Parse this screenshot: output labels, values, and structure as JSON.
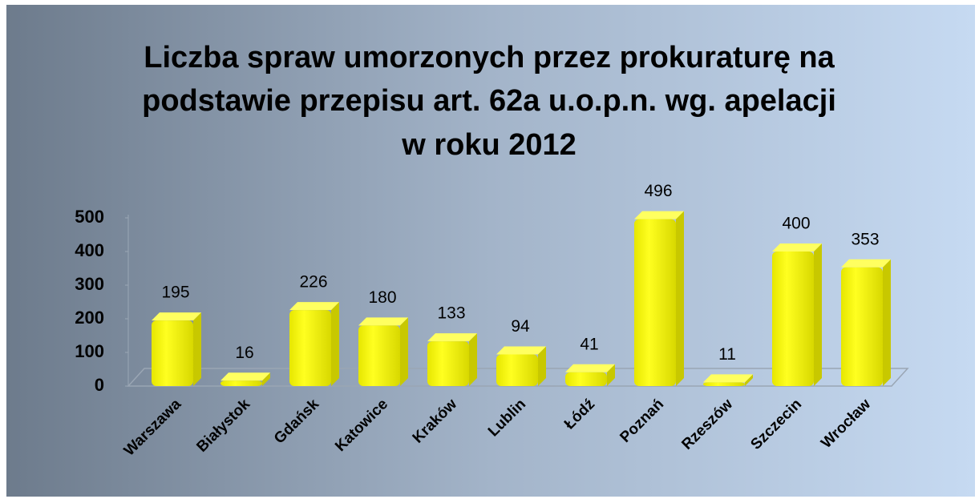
{
  "chart_data": {
    "type": "bar",
    "title": [
      "Liczba spraw umorzonych przez prokuraturę na",
      "podstawie przepisu art. 62a u.o.p.n. wg. apelacji",
      "w roku 2012"
    ],
    "categories": [
      "Warszawa",
      "Białystok",
      "Gdańsk",
      "Katowice",
      "Kraków",
      "Lublin",
      "Łódź",
      "Poznań",
      "Rzeszów",
      "Szczecin",
      "Wrocław"
    ],
    "values": [
      195,
      16,
      226,
      180,
      133,
      94,
      41,
      496,
      11,
      400,
      353
    ],
    "color": "#ffff00",
    "ylim": [
      0,
      500
    ],
    "yticks": [
      0,
      100,
      200,
      300,
      400,
      500
    ]
  }
}
